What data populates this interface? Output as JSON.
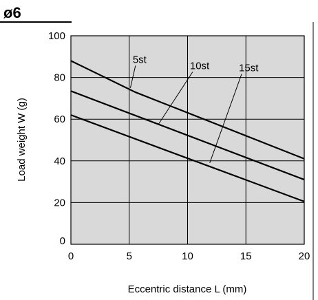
{
  "heading": "ø6",
  "chart_data": {
    "type": "line",
    "title": "",
    "xlabel": "Eccentric distance L (mm)",
    "ylabel": "Load weight W (g)",
    "xlim": [
      0,
      20
    ],
    "ylim": [
      0,
      100
    ],
    "xticks": [
      "0",
      "5",
      "10",
      "15",
      "20"
    ],
    "yticks": [
      "0",
      "20",
      "40",
      "60",
      "80",
      "100"
    ],
    "grid": true,
    "background": "#d9d9d9",
    "series": [
      {
        "name": "5st",
        "x": [
          0,
          5.5,
          20
        ],
        "y": [
          88,
          73,
          41
        ]
      },
      {
        "name": "10st",
        "x": [
          0,
          20
        ],
        "y": [
          73.5,
          31
        ]
      },
      {
        "name": "15st",
        "x": [
          0,
          20
        ],
        "y": [
          62,
          20.5
        ]
      }
    ],
    "annotations": [
      {
        "series": "5st",
        "text": "5st",
        "label_at": [
          5.3,
          87
        ],
        "point": [
          5.1,
          75
        ]
      },
      {
        "series": "10st",
        "text": "10st",
        "label_at": [
          10.2,
          84
        ],
        "point": [
          7.5,
          57.5
        ]
      },
      {
        "series": "15st",
        "text": "15st",
        "label_at": [
          14.4,
          83
        ],
        "point": [
          11.9,
          39
        ]
      }
    ]
  }
}
